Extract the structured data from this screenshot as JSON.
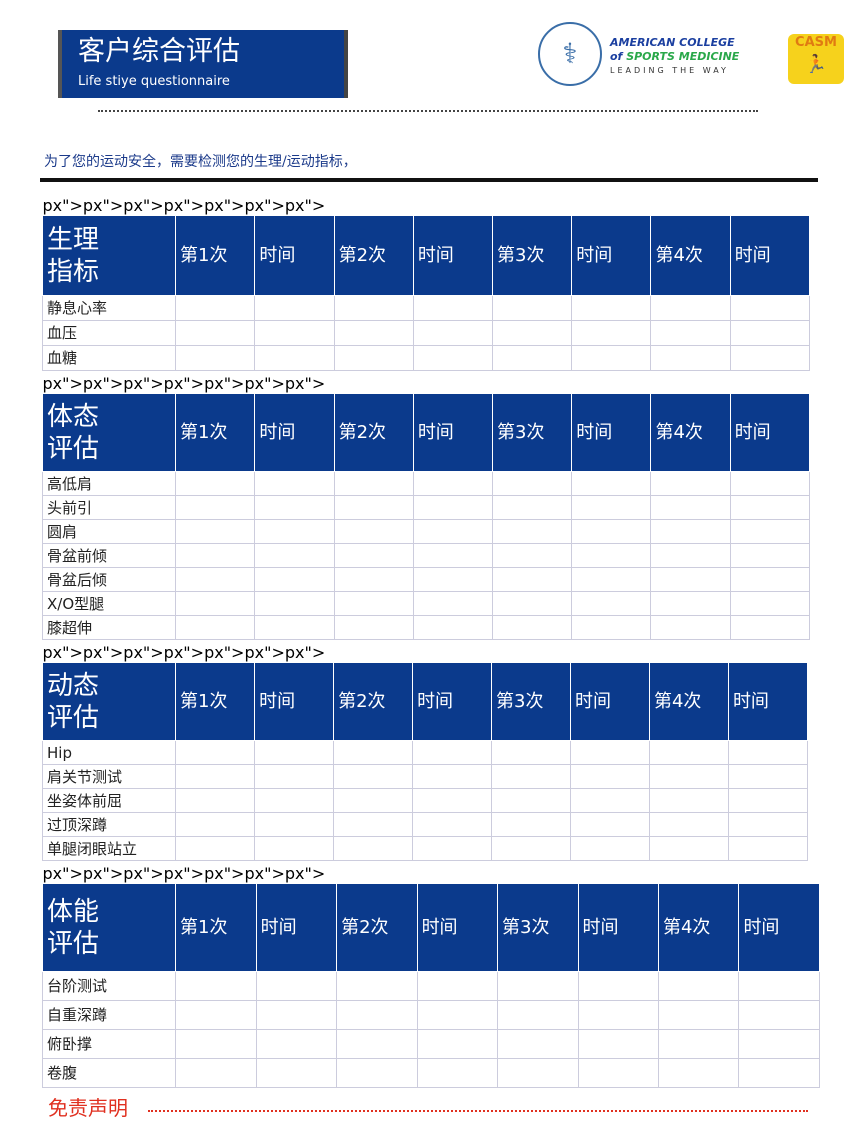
{
  "header": {
    "title_zh": "客户综合评估",
    "title_en": "Life stiye questionnaire"
  },
  "logos": {
    "acsm_line1": "AMERICAN COLLEGE",
    "acsm_of": "of",
    "acsm_line2": "SPORTS MEDICINE",
    "acsm_tagline": "LEADING THE WAY",
    "casm": "CASM"
  },
  "intro": "为了您的运动安全，需要检测您的生理/运动指标，",
  "columns": [
    "第1次",
    "时间",
    "第2次",
    "时间",
    "第3次",
    "时间",
    "第4次",
    "时间"
  ],
  "sections": [
    {
      "title": [
        "生理",
        "指标"
      ],
      "rows": [
        "静息心率",
        "血压",
        "血糖"
      ]
    },
    {
      "title": [
        "体态",
        "评估"
      ],
      "rows": [
        "高低肩",
        "头前引",
        "圆肩",
        "骨盆前倾",
        "骨盆后倾",
        "X/O型腿",
        "膝超伸"
      ]
    },
    {
      "title": [
        "动态",
        "评估"
      ],
      "rows": [
        "Hip",
        "肩关节测试",
        "坐姿体前屈",
        "过顶深蹲",
        "单腿闭眼站立"
      ]
    },
    {
      "title": [
        "体能",
        "评估"
      ],
      "rows": [
        "台阶测试",
        "自重深蹲",
        "俯卧撑",
        "卷腹"
      ]
    }
  ],
  "footer": "免责声明",
  "colors": {
    "header_blue": "#0b3a8c",
    "footer_red": "#e03020"
  }
}
